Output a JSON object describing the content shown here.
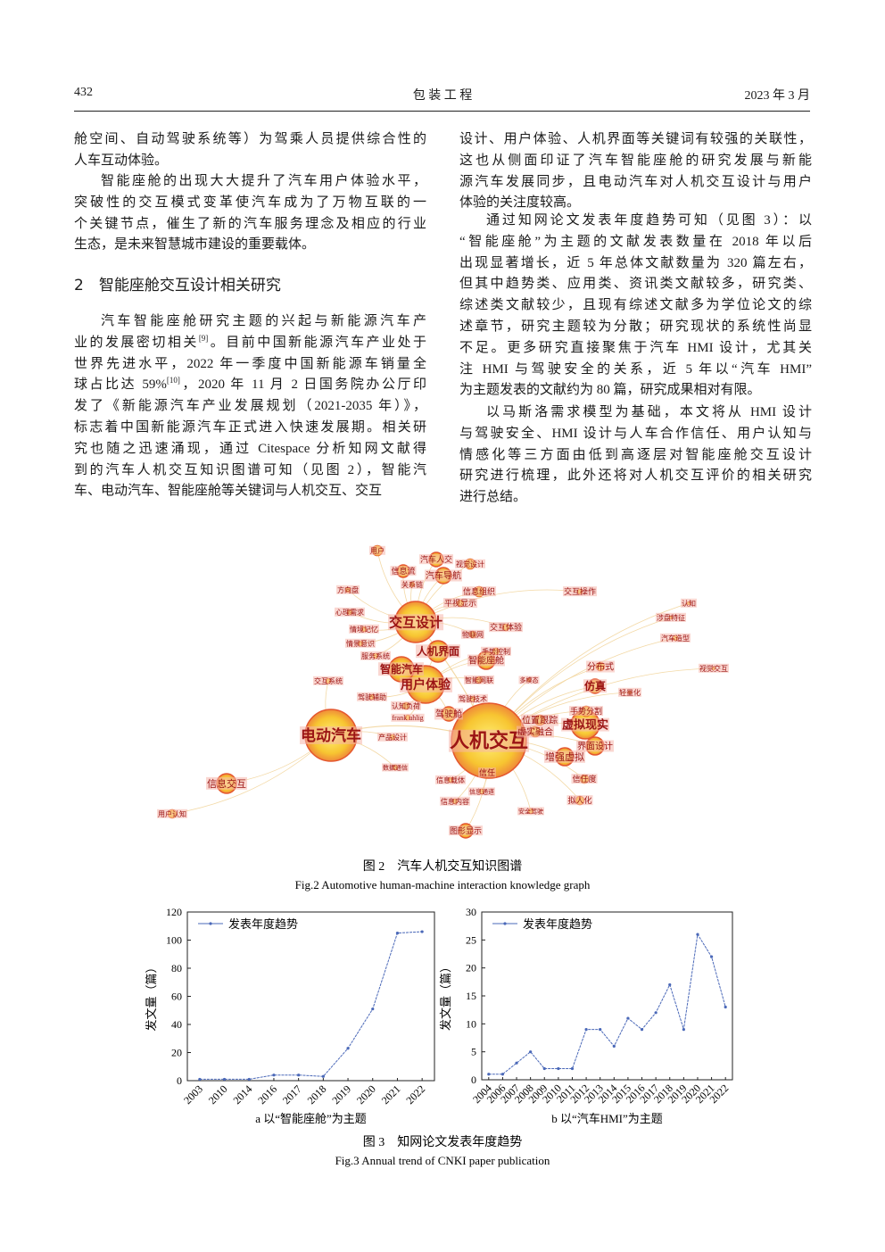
{
  "header": {
    "page_number": "432",
    "journal": "包 装 工 程",
    "date": "2023 年 3 月"
  },
  "left_column": [
    {
      "lines": [
        "舱空间、自动驾驶系统等）为驾乘人员提供综合性的",
        "人车互动体验。"
      ]
    },
    {
      "lines": [
        "智能座舱的出现大大提升了汽车用户体验水平，",
        "突破性的交互模式变革使汽车成为了万物互联的一",
        "个关键节点，催生了新的汽车服务理念及相应的行业",
        "生态，是未来智慧城市建设的重要载体。"
      ]
    },
    {
      "heading": "2　智能座舱交互设计相关研究"
    },
    {
      "lines": [
        "汽车智能座舱研究主题的兴起与新能源汽车产",
        "业的发展密切相关[9]。目前中国新能源汽车产业处于",
        "世界先进水平，2022 年一季度中国新能源车销量全",
        "球占比达 59%[10]，2020 年 11 月 2 日国务院办公厅印",
        "发了《新能源汽车产业发展规划（2021-2035 年）》，",
        "标志着中国新能源汽车正式进入快速发展期。相关研",
        "究也随之迅速涌现，通过 Citespace 分析知网文献得",
        "到的汽车人机交互知识图谱可知（见图 2），智能汽",
        "车、电动汽车、智能座舱等关键词与人机交互、交互"
      ]
    }
  ],
  "right_column": [
    {
      "lines": [
        "设计、用户体验、人机界面等关键词有较强的关联性，",
        "这也从侧面印证了汽车智能座舱的研究发展与新能",
        "源汽车发展同步，且电动汽车对人机交互设计与用户",
        "体验的关注度较高。"
      ]
    },
    {
      "lines": [
        "通过知网论文发表年度趋势可知（见图 3）：以",
        "“智能座舱”为主题的文献发表数量在 2018 年以后",
        "出现显著增长，近 5 年总体文献数量为 320 篇左右，",
        "但其中趋势类、应用类、资讯类文献较多，研究类、",
        "综述类文献较少，且现有综述文献多为学位论文的综",
        "述章节，研究主题较为分散；研究现状的系统性尚显",
        "不足。更多研究直接聚焦于汽车 HMI 设计，尤其关",
        "注 HMI 与驾驶安全的关系，近 5 年以“汽车 HMI”",
        "为主题发表的文献约为 80 篇，研究成果相对有限。"
      ]
    },
    {
      "lines": [
        "以马斯洛需求模型为基础，本文将从 HMI 设计",
        "与驾驶安全、HMI 设计与人车合作信任、用户认知与",
        "情感化等三方面由低到高逐层对智能座舱交互设计",
        "研究进行梳理，此外还将对人机交互评价的相关研究",
        "进行总结。"
      ]
    }
  ],
  "figure2": {
    "nodes": [
      "人机交互",
      "电动汽车",
      "交互设计",
      "用户体验",
      "智能汽车",
      "人机界面",
      "虚拟现实",
      "增强虚拟",
      "仿真",
      "界面设计",
      "驾驶舱",
      "智能座舱",
      "信息交互",
      "汽车导航",
      "汽车人交",
      "信息流",
      "信息组织",
      "视觉设计",
      "分布式",
      "手势分割",
      "位置跟踪",
      "虚实融合",
      "信任度",
      "拟人化",
      "交互操作",
      "认知",
      "涉盘特征",
      "汽车造型",
      "视觉交互",
      "轻量化",
      "交互体验",
      "物联网",
      "手势控制",
      "智能网联",
      "驾驶技术",
      "平视显示",
      "关系链",
      "方向盘",
      "心理需求",
      "情境记忆",
      "情景意识",
      "服务系统",
      "交互系统",
      "驾驶辅助",
      "认知负荷",
      "frank uhlig",
      "产品设计",
      "数据通信",
      "信息载体",
      "信息通道",
      "信息内容",
      "信任",
      "用户认知",
      "图形显示",
      "用户",
      "安全驾驶",
      "多模态"
    ],
    "caption_cn": "图 2　汽车人机交互知识图谱",
    "caption_en": "Fig.2 Automotive human-machine interaction knowledge graph"
  },
  "figure3": {
    "caption_cn": "图 3　知网论文发表年度趋势",
    "caption_en": "Fig.3 Annual trend of CNKI paper publication"
  },
  "chart_data": [
    {
      "type": "line",
      "caption": "a 以“智能座舱”为主题",
      "ylabel": "发文量（篇）",
      "legend": "upper left",
      "categories": [
        "2003",
        "2010",
        "2014",
        "2016",
        "2017",
        "2018",
        "2019",
        "2020",
        "2021",
        "2022"
      ],
      "series": [
        {
          "name": "发表年度趋势",
          "color": "#4a68b8",
          "values": [
            1,
            1,
            1,
            4,
            4,
            3,
            23,
            51,
            105,
            106
          ]
        }
      ],
      "ylim": [
        0,
        120
      ],
      "yticks": [
        0,
        20,
        40,
        60,
        80,
        100,
        120
      ]
    },
    {
      "type": "line",
      "caption": "b 以“汽车HMI”为主题",
      "ylabel": "发文量（篇）",
      "legend": "upper left",
      "categories": [
        "2004",
        "2006",
        "2007",
        "2008",
        "2009",
        "2010",
        "2011",
        "2012",
        "2013",
        "2014",
        "2015",
        "2016",
        "2017",
        "2018",
        "2019",
        "2020",
        "2021",
        "2022"
      ],
      "series": [
        {
          "name": "发表年度趋势",
          "color": "#4a68b8",
          "values": [
            1,
            1,
            3,
            5,
            2,
            2,
            2,
            9,
            9,
            6,
            11,
            9,
            12,
            17,
            9,
            26,
            22,
            13
          ]
        }
      ],
      "ylim": [
        0,
        30
      ],
      "yticks": [
        0,
        5,
        10,
        15,
        20,
        25,
        30
      ]
    }
  ]
}
